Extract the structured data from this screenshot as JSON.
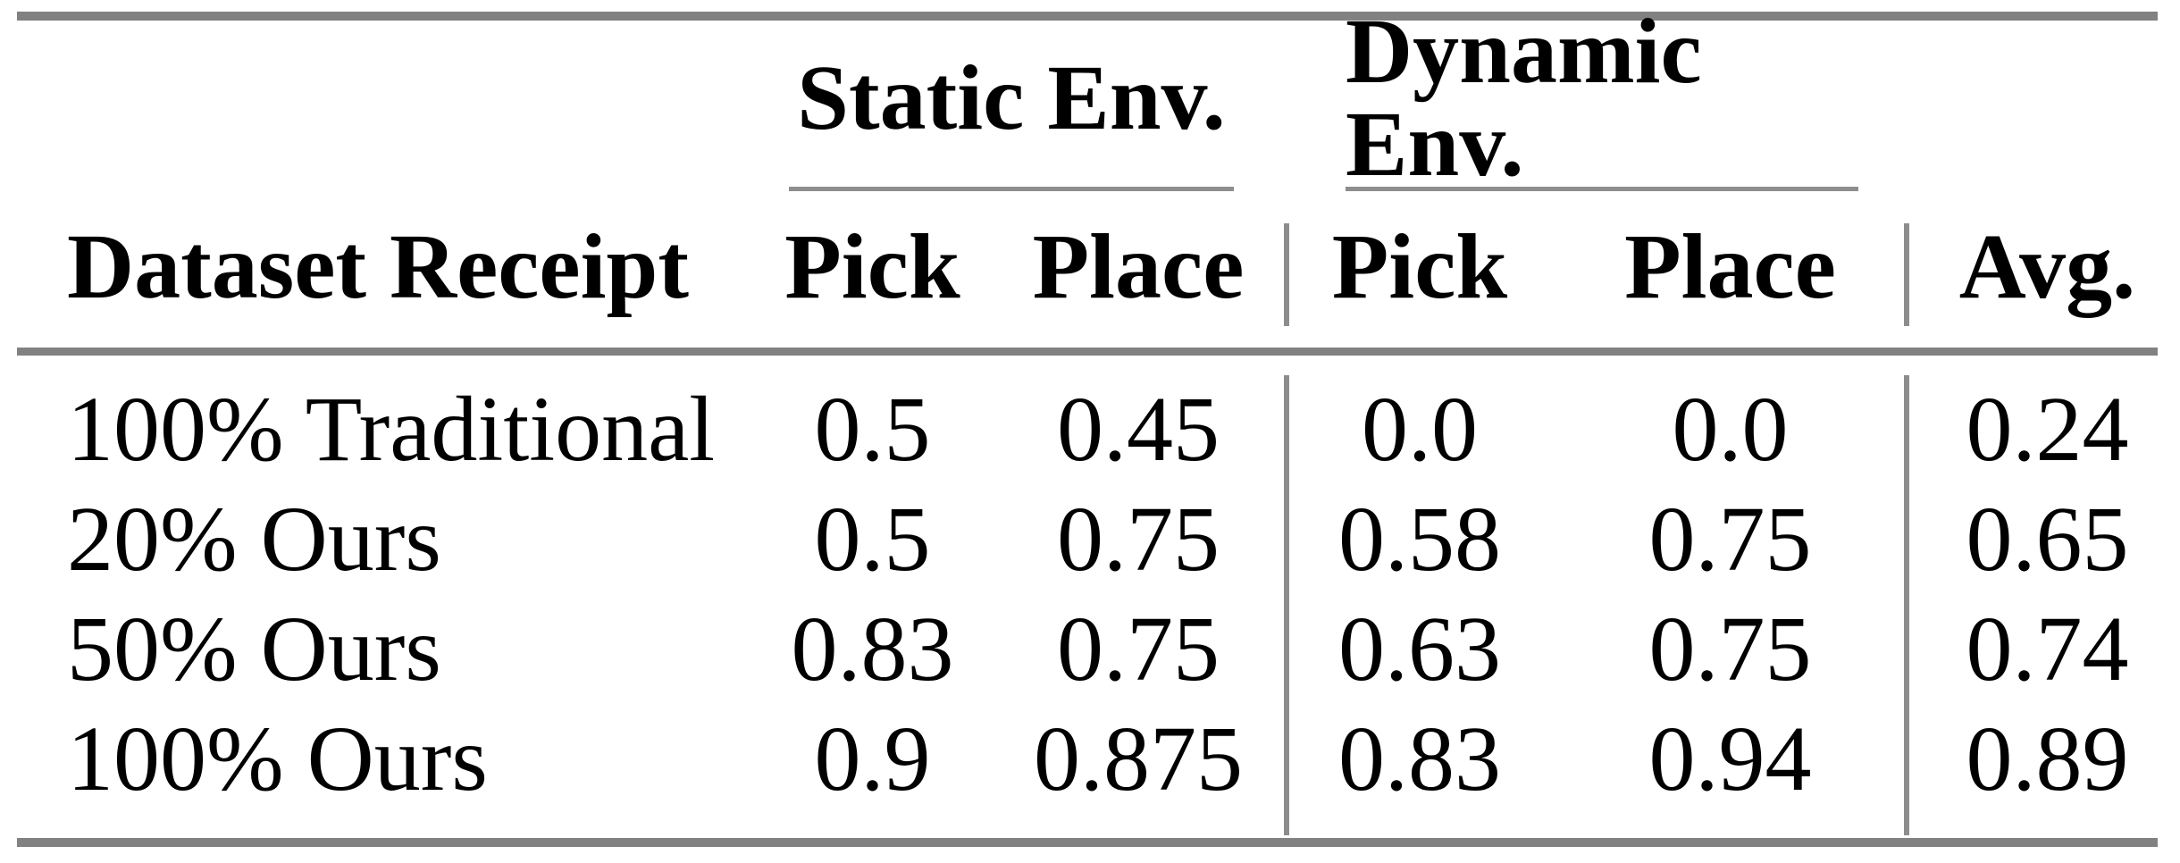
{
  "table": {
    "headers": {
      "groups": [
        {
          "label": "Static Env."
        },
        {
          "label": "Dynamic Env."
        }
      ],
      "columns": [
        "Dataset Receipt",
        "Pick",
        "Place",
        "Pick",
        "Place",
        "Avg."
      ]
    },
    "rows": [
      {
        "label": "100% Traditional",
        "values": [
          "0.5",
          "0.45",
          "0.0",
          "0.0",
          "0.24"
        ]
      },
      {
        "label": "20% Ours",
        "values": [
          "0.5",
          "0.75",
          "0.58",
          "0.75",
          "0.65"
        ]
      },
      {
        "label": "50% Ours",
        "values": [
          "0.83",
          "0.75",
          "0.63",
          "0.75",
          "0.74"
        ]
      },
      {
        "label": "100% Ours",
        "values": [
          "0.9",
          "0.875",
          "0.83",
          "0.94",
          "0.89"
        ]
      }
    ],
    "colors": {
      "rule_heavy": "#818181",
      "rule_light": "#8d8d8d",
      "text": "#000000",
      "background": "#ffffff"
    }
  },
  "chart_data": {
    "type": "table",
    "column_groups": [
      {
        "label": "Static Env.",
        "columns": [
          "Pick",
          "Place"
        ]
      },
      {
        "label": "Dynamic Env.",
        "columns": [
          "Pick",
          "Place"
        ]
      }
    ],
    "columns": [
      "Dataset Receipt",
      "Static Env. Pick",
      "Static Env. Place",
      "Dynamic Env. Pick",
      "Dynamic Env. Place",
      "Avg."
    ],
    "rows": [
      {
        "dataset_receipt": "100% Traditional",
        "static_pick": 0.5,
        "static_place": 0.45,
        "dynamic_pick": 0.0,
        "dynamic_place": 0.0,
        "avg": 0.24
      },
      {
        "dataset_receipt": "20% Ours",
        "static_pick": 0.5,
        "static_place": 0.75,
        "dynamic_pick": 0.58,
        "dynamic_place": 0.75,
        "avg": 0.65
      },
      {
        "dataset_receipt": "50% Ours",
        "static_pick": 0.83,
        "static_place": 0.75,
        "dynamic_pick": 0.63,
        "dynamic_place": 0.75,
        "avg": 0.74
      },
      {
        "dataset_receipt": "100% Ours",
        "static_pick": 0.9,
        "static_place": 0.875,
        "dynamic_pick": 0.83,
        "dynamic_place": 0.94,
        "avg": 0.89
      }
    ]
  }
}
